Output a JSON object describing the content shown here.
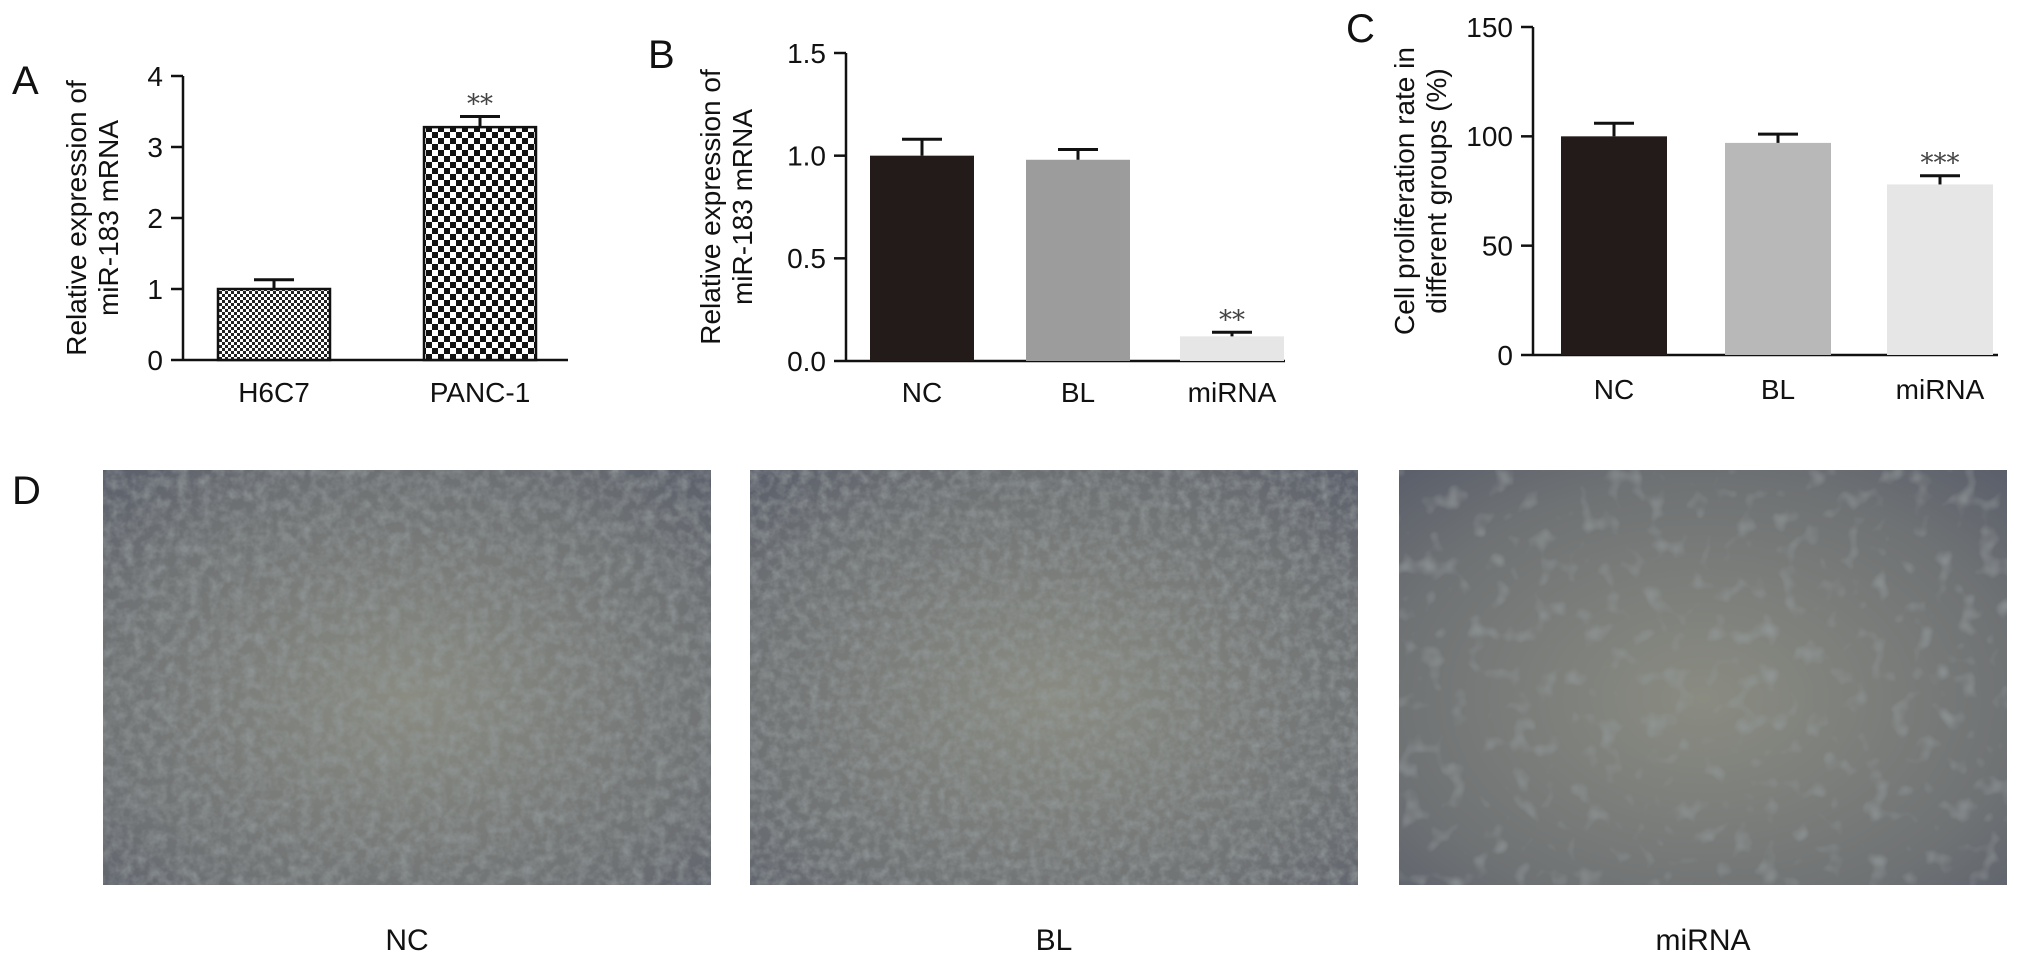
{
  "chart_data": [
    {
      "panel": "A",
      "type": "bar",
      "categories": [
        "H6C7",
        "PANC-1"
      ],
      "values": [
        1.0,
        3.28
      ],
      "errors": [
        0.13,
        0.15
      ],
      "significance": [
        "",
        "**"
      ],
      "ylabel_lines": [
        "Relative expression of",
        "miR-183 mRNA"
      ],
      "xlabel": "",
      "ylim": [
        0,
        4
      ],
      "yticks": [
        0,
        1,
        2,
        3,
        4
      ],
      "fills": [
        "checker-fine",
        "checker-coarse"
      ]
    },
    {
      "panel": "B",
      "type": "bar",
      "categories": [
        "NC",
        "BL",
        "miRNA"
      ],
      "values": [
        1.0,
        0.98,
        0.12
      ],
      "errors": [
        0.08,
        0.05,
        0.02
      ],
      "significance": [
        "",
        "",
        "**"
      ],
      "ylabel_lines": [
        "Relative expression of",
        "miR-183 mRNA"
      ],
      "xlabel": "",
      "ylim": [
        0,
        1.5
      ],
      "yticks": [
        0.0,
        0.5,
        1.0,
        1.5
      ],
      "tick_format": 1,
      "colors": [
        "#231a1a",
        "#9c9c9c",
        "#e6e6e6"
      ]
    },
    {
      "panel": "C",
      "type": "bar",
      "categories": [
        "NC",
        "BL",
        "miRNA"
      ],
      "values": [
        100,
        97,
        78
      ],
      "errors": [
        6,
        4,
        4
      ],
      "significance": [
        "",
        "",
        "***"
      ],
      "ylabel_lines": [
        "Cell proliferation rate in",
        "different groups (%)"
      ],
      "xlabel": "",
      "ylim": [
        0,
        150
      ],
      "yticks": [
        0,
        50,
        100,
        150
      ],
      "colors": [
        "#231a1a",
        "#b8b8b8",
        "#e6e6e6"
      ]
    }
  ],
  "panel_d": {
    "label": "D",
    "captions": [
      "NC",
      "BL",
      "miRNA"
    ],
    "density": [
      "high",
      "high",
      "sparse"
    ]
  }
}
